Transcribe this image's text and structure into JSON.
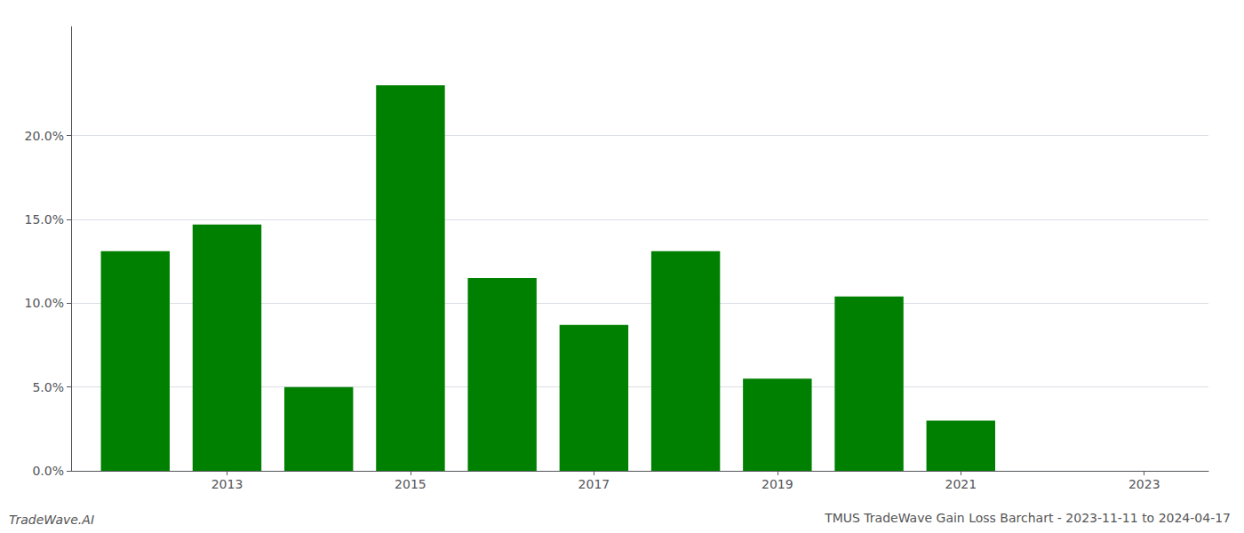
{
  "chart_data": {
    "type": "bar",
    "title": "TMUS TradeWave Gain Loss Barchart - 2023-11-11 to 2024-04-17",
    "annotations": [
      "TradeWave.AI"
    ],
    "x": [
      2012,
      2013,
      2014,
      2015,
      2016,
      2017,
      2018,
      2019,
      2020,
      2021,
      2022
    ],
    "values": [
      0.131,
      0.147,
      0.05,
      0.23,
      0.115,
      0.087,
      0.131,
      0.055,
      0.104,
      0.03,
      0.0
    ],
    "color": "#008000",
    "xlim": [
      2011.3,
      2023.7
    ],
    "xticks": [
      2013,
      2015,
      2017,
      2019,
      2021,
      2023
    ],
    "ylim": [
      0.0,
      0.265
    ],
    "yticks": [
      {
        "value": 0.0,
        "label": "0.0%"
      },
      {
        "value": 0.05,
        "label": "5.0%"
      },
      {
        "value": 0.1,
        "label": "10.0%"
      },
      {
        "value": 0.15,
        "label": "15.0%"
      },
      {
        "value": 0.2,
        "label": "20.0%"
      }
    ],
    "grid": true
  }
}
